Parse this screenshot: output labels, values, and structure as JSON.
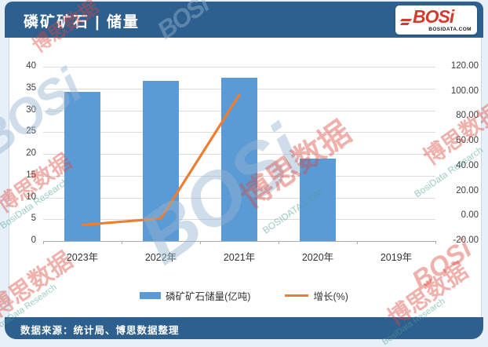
{
  "header": {
    "title": "磷矿矿石 | 储量",
    "logo": {
      "text": "BOSi",
      "subtext": "BOSIDATA.COM"
    }
  },
  "footer": {
    "source": "数据来源：统计局、博思数据整理"
  },
  "watermark": {
    "cn": "博思数据",
    "en": "BosiData Research",
    "logo": "BOSi",
    "site": "BOSIDATA.COM"
  },
  "chart_data": {
    "type": "bar",
    "combo_types": [
      "bar",
      "line"
    ],
    "title": "磷矿矿石 | 储量",
    "categories": [
      "2023年",
      "2022年",
      "2021年",
      "2020年",
      "2019年"
    ],
    "series": [
      {
        "name": "磷矿矿石储量(亿吨)",
        "type": "bar",
        "axis": "left",
        "color": "#5B9BD5",
        "values": [
          34.2,
          36.8,
          37.5,
          19.0,
          null
        ]
      },
      {
        "name": "增长(%)",
        "type": "line",
        "axis": "right",
        "color": "#ED7D31",
        "values": [
          -7.1,
          -1.9,
          97.4,
          null,
          null
        ]
      }
    ],
    "left_axis": {
      "min": 0,
      "max": 40,
      "step": 5,
      "ticks": [
        "0",
        "5",
        "10",
        "15",
        "20",
        "25",
        "30",
        "35",
        "40"
      ]
    },
    "right_axis": {
      "min": -20,
      "max": 120,
      "step": 20,
      "ticks": [
        "120.00",
        "100.00",
        "80.00",
        "60.00",
        "40.00",
        "20.00",
        "0.00",
        "-20.00"
      ]
    },
    "legend": [
      {
        "label": "磷矿矿石储量(亿吨)",
        "color": "#5B9BD5",
        "type": "bar"
      },
      {
        "label": "增长(%)",
        "color": "#ED7D31",
        "type": "line"
      }
    ],
    "legend_position": "bottom",
    "grid": true
  }
}
